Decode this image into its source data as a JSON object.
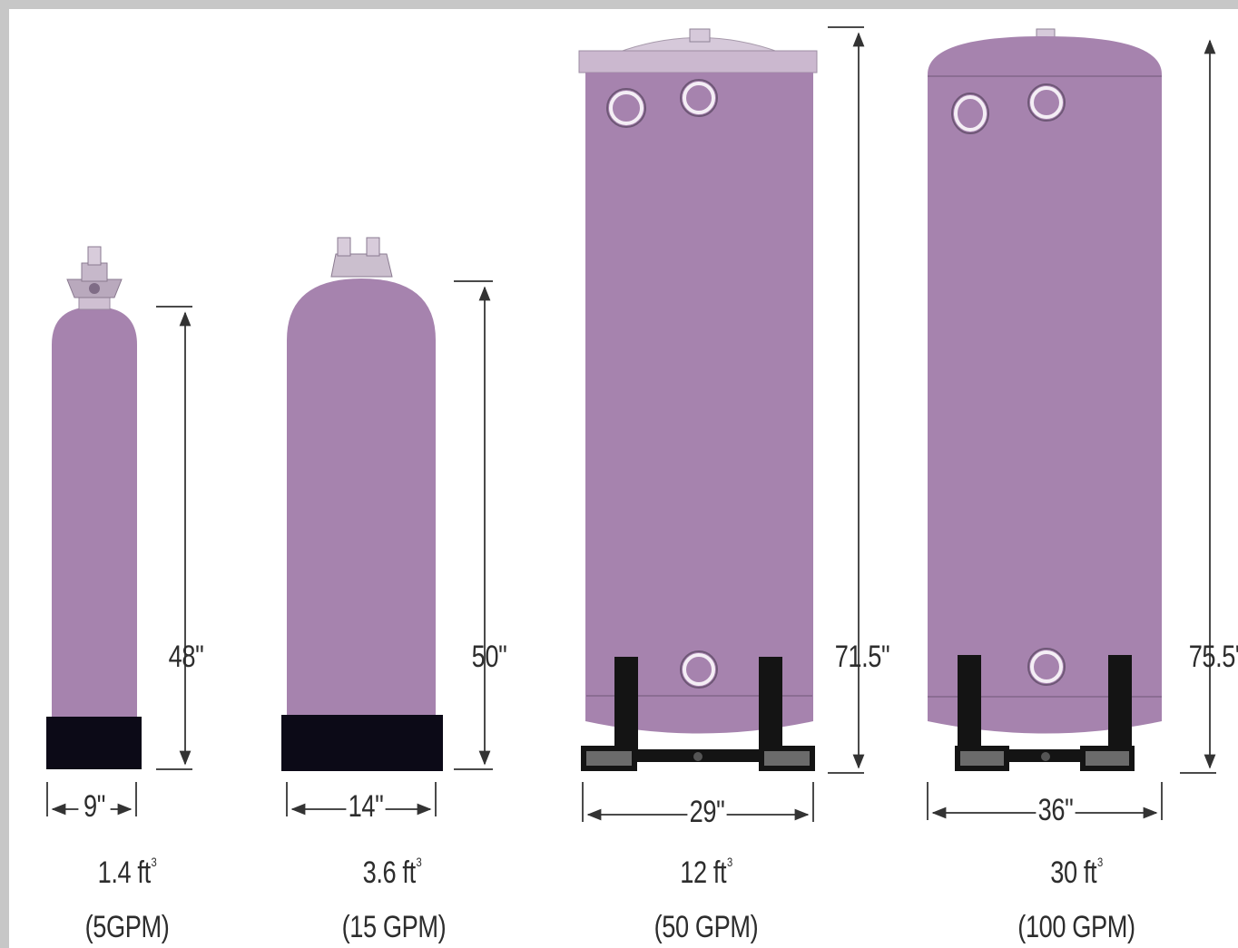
{
  "colors": {
    "tank": "#a683ae",
    "tank_top": "#c2a7c8",
    "base": "#0c0a17",
    "stand": "#141414",
    "dim_line": "#4a4a4a"
  },
  "tanks": [
    {
      "width": "9\"",
      "height": "48\"",
      "volume": "1.4 ft",
      "volume_unit_sup": "3",
      "flow": "(5GPM)"
    },
    {
      "width": "14\"",
      "height": "50\"",
      "volume": "3.6 ft",
      "volume_unit_sup": "3",
      "flow": "(15 GPM)"
    },
    {
      "width": "29\"",
      "height": "71.5\"",
      "volume": "12 ft",
      "volume_unit_sup": "3",
      "flow": "(50 GPM)"
    },
    {
      "width": "36\"",
      "height": "75.5\"",
      "volume": "30 ft",
      "volume_unit_sup": "3",
      "flow": "(100 GPM)"
    }
  ]
}
